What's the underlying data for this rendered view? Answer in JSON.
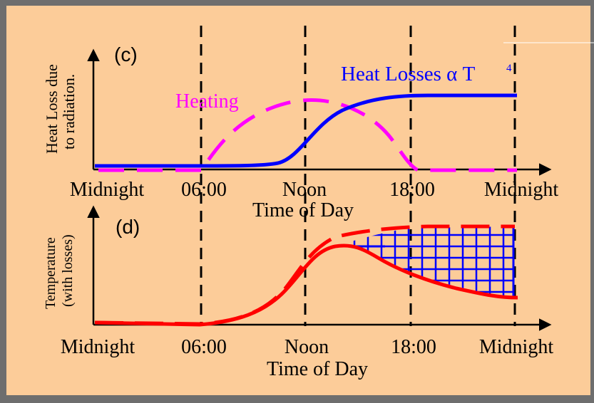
{
  "top_panel": {
    "label": "(c)",
    "ylabel_line1": "Heat Loss due",
    "ylabel_line2": "to radiation.",
    "heating_label": "Heating",
    "losses_label": "Heat Losses α T",
    "losses_superscript": "4",
    "x_ticks": [
      "Midnight",
      "06:00",
      "Noon",
      "18:00",
      "Midnight"
    ],
    "xlabel": "Time of Day"
  },
  "bottom_panel": {
    "label": "(d)",
    "ylabel_line1": "Temperature",
    "ylabel_line2": "(with losses)",
    "x_ticks": [
      "Midnight",
      "06:00",
      "Noon",
      "18:00",
      "Midnight"
    ],
    "xlabel": "Time of Day"
  },
  "colors": {
    "panel_bg": "#fccc99",
    "frame": "#6e6e6e",
    "heating": "#ff00ff",
    "losses": "#0000ff",
    "temperature": "#ff0000",
    "hatch": "#0000ff",
    "axis": "#000000"
  }
}
